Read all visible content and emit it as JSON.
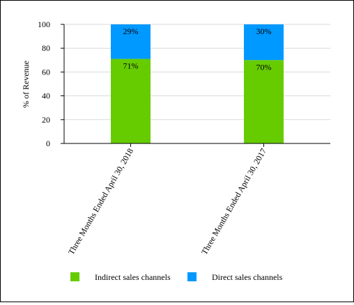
{
  "chart_data": {
    "type": "bar",
    "stacked": true,
    "categories": [
      "Three Months Ended April 30, 2018",
      "Three Months Ended April 30, 2017"
    ],
    "series": [
      {
        "name": "Indirect sales channels",
        "values": [
          71,
          70
        ],
        "labels": [
          "71%",
          "70%"
        ],
        "color": "#66cc00"
      },
      {
        "name": "Direct sales channels",
        "values": [
          29,
          30
        ],
        "labels": [
          "29%",
          "30%"
        ],
        "color": "#0099ff"
      }
    ],
    "xlabel": "",
    "ylabel": "% of Revenue",
    "ylim": [
      0,
      100
    ],
    "yticks": [
      0,
      20,
      40,
      60,
      80,
      100
    ],
    "grid": true,
    "legend_position": "bottom"
  }
}
